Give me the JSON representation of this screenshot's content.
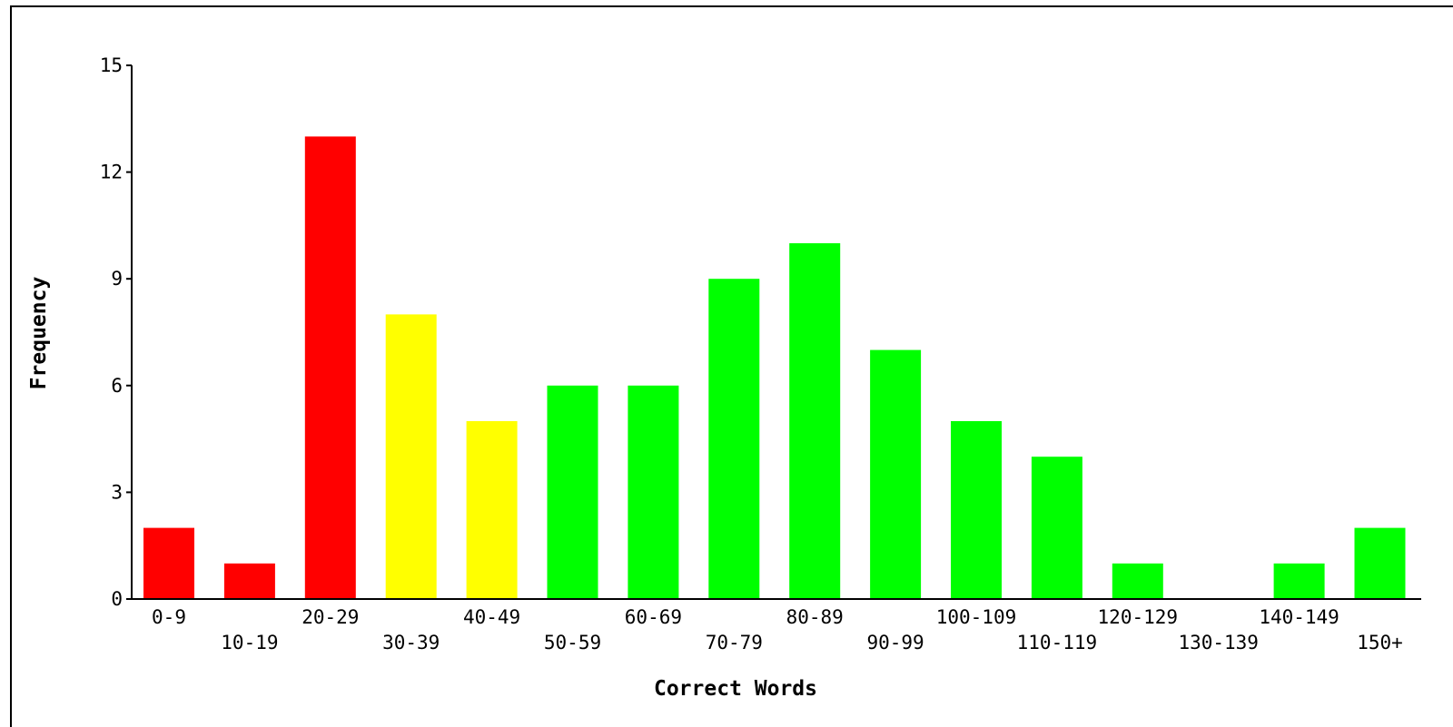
{
  "chart_data": {
    "type": "bar",
    "xlabel": "Correct Words",
    "ylabel": "Frequency",
    "ylim": [
      0,
      15
    ],
    "yticks": [
      0,
      3,
      6,
      9,
      12,
      15
    ],
    "categories": [
      "0-9",
      "10-19",
      "20-29",
      "30-39",
      "40-49",
      "50-59",
      "60-69",
      "70-79",
      "80-89",
      "90-99",
      "100-109",
      "110-119",
      "120-129",
      "130-139",
      "140-149",
      "150+"
    ],
    "values": [
      2,
      1,
      13,
      8,
      5,
      6,
      6,
      9,
      10,
      7,
      5,
      4,
      1,
      0,
      1,
      2
    ],
    "bar_colors": [
      "#ff0000",
      "#ff0000",
      "#ff0000",
      "#ffff00",
      "#ffff00",
      "#00ff00",
      "#00ff00",
      "#00ff00",
      "#00ff00",
      "#00ff00",
      "#00ff00",
      "#00ff00",
      "#00ff00",
      "#00ff00",
      "#00ff00",
      "#00ff00"
    ],
    "grid": false,
    "legend": "none"
  }
}
